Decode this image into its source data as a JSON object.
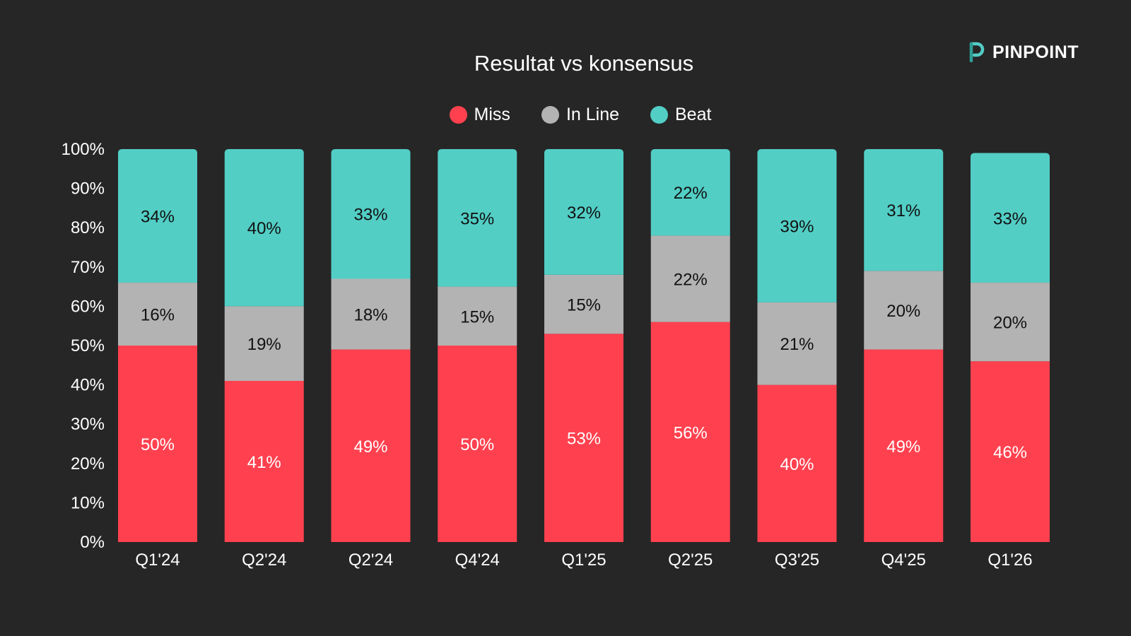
{
  "header": {
    "title": "Resultat vs konsensus",
    "brand": "PINPOINT",
    "brand_icon": "pinpoint-logo-icon"
  },
  "colors": {
    "background": "#262626",
    "miss": "#FF414F",
    "in_line": "#B3B3B3",
    "beat": "#52CEC5"
  },
  "chart_data": {
    "type": "bar",
    "stacked": true,
    "title": "Resultat vs konsensus",
    "xlabel": "",
    "ylabel": "",
    "ylim": [
      0,
      100
    ],
    "yticks": [
      "0%",
      "10%",
      "20%",
      "30%",
      "40%",
      "50%",
      "60%",
      "70%",
      "80%",
      "90%",
      "100%"
    ],
    "legend_position": "top-center",
    "grid": false,
    "categories": [
      "Q1'24",
      "Q2'24",
      "Q2'24",
      "Q4'24",
      "Q1'25",
      "Q2'25",
      "Q3'25",
      "Q4'25",
      "Q1'26"
    ],
    "series": [
      {
        "name": "Miss",
        "color": "#FF414F",
        "values": [
          50,
          41,
          49,
          50,
          53,
          56,
          40,
          49,
          46
        ],
        "labels": [
          "50%",
          "41%",
          "49%",
          "50%",
          "53%",
          "56%",
          "40%",
          "49%",
          "46%"
        ]
      },
      {
        "name": "In Line",
        "color": "#B3B3B3",
        "values": [
          16,
          19,
          18,
          15,
          15,
          22,
          21,
          20,
          20
        ],
        "labels": [
          "16%",
          "19%",
          "18%",
          "15%",
          "15%",
          "22%",
          "21%",
          "20%",
          "20%"
        ]
      },
      {
        "name": "Beat",
        "color": "#52CEC5",
        "values": [
          34,
          40,
          33,
          35,
          32,
          22,
          39,
          31,
          33
        ],
        "labels": [
          "34%",
          "40%",
          "33%",
          "35%",
          "32%",
          "22%",
          "39%",
          "31%",
          "33%"
        ]
      }
    ]
  }
}
